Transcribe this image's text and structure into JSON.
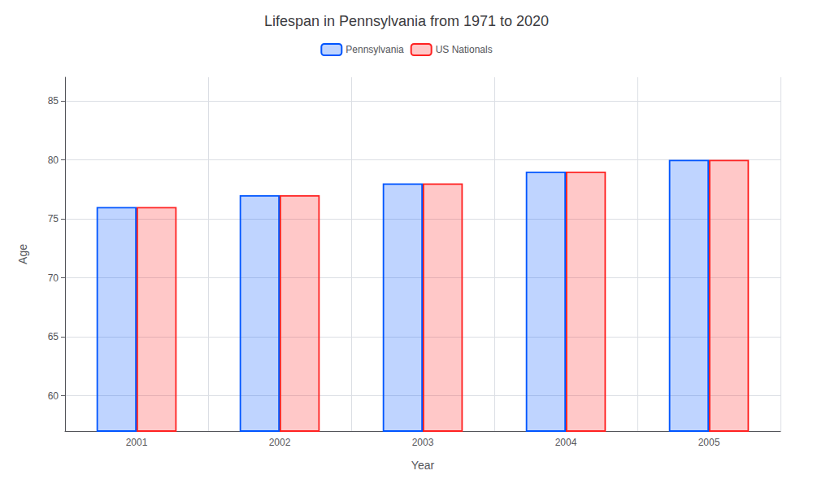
{
  "chart_data": {
    "type": "bar",
    "title": "Lifespan in Pennsylvania from 1971 to 2020",
    "x_label": "Year",
    "y_label": "Age",
    "categories": [
      "2001",
      "2002",
      "2003",
      "2004",
      "2005"
    ],
    "series": [
      {
        "name": "Pennsylvania",
        "color": "#0055ff",
        "values": [
          76,
          77,
          78,
          79,
          80
        ]
      },
      {
        "name": "US Nationals",
        "color": "#ff2222",
        "values": [
          76,
          77,
          78,
          79,
          80
        ]
      }
    ],
    "ylim": [
      57,
      87
    ],
    "yticks": [
      60,
      65,
      70,
      75,
      80,
      85
    ],
    "grid": true,
    "legend": "top"
  }
}
